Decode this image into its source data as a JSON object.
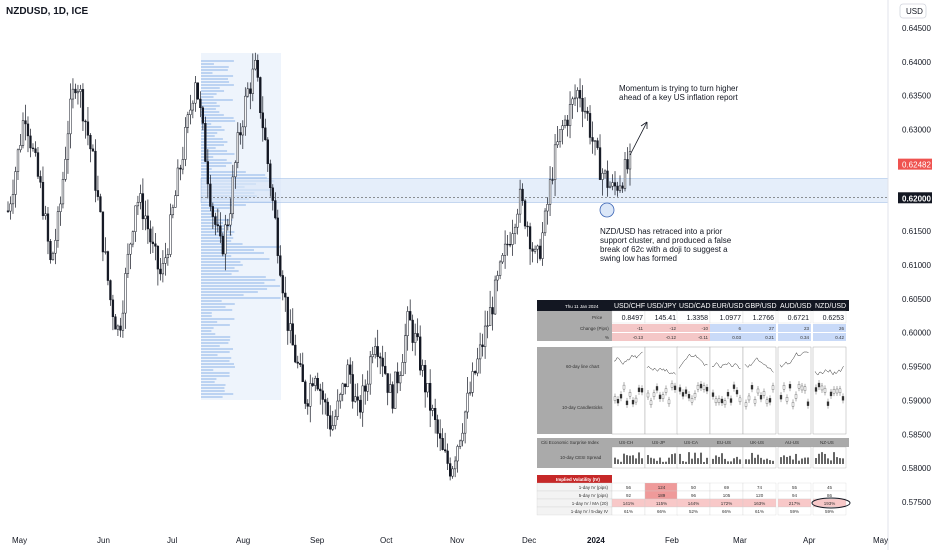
{
  "chart_data": {
    "type": "candlestick",
    "title": "NZDUSD, 1D, ICE",
    "currency": "USD",
    "y_ticks": [
      "0.64500",
      "0.64000",
      "0.63500",
      "0.63000",
      "0.62500",
      "0.62000",
      "0.61500",
      "0.61000",
      "0.60500",
      "0.60000",
      "0.59500",
      "0.59000",
      "0.58500",
      "0.58000",
      "0.57500"
    ],
    "y_tick_values": [
      0.645,
      0.64,
      0.635,
      0.63,
      0.625,
      0.62,
      0.615,
      0.61,
      0.605,
      0.6,
      0.595,
      0.59,
      0.585,
      0.58,
      0.575
    ],
    "ylim": [
      0.5725,
      0.6475
    ],
    "x_labels": [
      "May",
      "Jun",
      "Jul",
      "Aug",
      "Sep",
      "Oct",
      "Nov",
      "Dec",
      "2024",
      "Feb",
      "Mar",
      "Apr",
      "May"
    ],
    "current_price_label": "0.62482",
    "current_price": 0.62482,
    "line_price_label": "0.62000",
    "line_price": 0.62,
    "support_zone": [
      0.6192,
      0.6228
    ],
    "path": [
      0.618,
      0.625,
      0.633,
      0.626,
      0.62,
      0.61,
      0.617,
      0.63,
      0.638,
      0.632,
      0.625,
      0.615,
      0.605,
      0.6,
      0.61,
      0.62,
      0.618,
      0.612,
      0.608,
      0.615,
      0.623,
      0.63,
      0.638,
      0.628,
      0.618,
      0.612,
      0.618,
      0.628,
      0.635,
      0.639,
      0.63,
      0.62,
      0.61,
      0.6,
      0.595,
      0.59,
      0.595,
      0.59,
      0.586,
      0.59,
      0.595,
      0.588,
      0.592,
      0.6,
      0.596,
      0.59,
      0.595,
      0.602,
      0.598,
      0.592,
      0.587,
      0.582,
      0.58,
      0.585,
      0.59,
      0.595,
      0.6,
      0.605,
      0.61,
      0.615,
      0.62,
      0.616,
      0.61,
      0.616,
      0.625,
      0.63,
      0.633,
      0.636,
      0.632,
      0.626,
      0.623,
      0.621,
      0.623,
      0.6248
    ]
  },
  "annotations": {
    "momentum": [
      "Momentum is trying to turn higher",
      "ahead of a key US inflation report"
    ],
    "retrace": [
      "NZD/USD has retraced into a prior",
      "support cluster, and produced a false",
      "break of 62c with a doji to suggest a",
      "swing low has formed"
    ]
  },
  "table": {
    "date": "Thu 11 Jan 2024",
    "pairs": [
      "USD/CHF",
      "USD/JPY",
      "USD/CAD",
      "EUR/USD",
      "GBP/USD",
      "AUD/USD",
      "NZD/USD"
    ],
    "price_label": "Price",
    "prices": [
      "0.8497",
      "145.41",
      "1.3358",
      "1.0977",
      "1.2766",
      "0.6721",
      "0.6253"
    ],
    "change_pips_label": "Change (Pips)",
    "change_pips": [
      "-11",
      "-12",
      "-10",
      "6",
      "27",
      "23",
      "26"
    ],
    "change_pct_label": "%",
    "change_pct": [
      "-0.13",
      "-0.12",
      "-0.11",
      "0.03",
      "0.21",
      "0.34",
      "0.42"
    ],
    "line_chart_label": "60-day line chart",
    "candle_label": "10-day Candlesticks"
  },
  "citi": {
    "title": "Citi Economic Surprise Index",
    "regions": [
      "US-CH",
      "US-JP",
      "US-CA",
      "EU-US",
      "UK-US",
      "AU-US",
      "NZ-US"
    ],
    "spread_label": "10-day CESI Spread"
  },
  "iv": {
    "title": "Implied Volatility (IV)",
    "rows": [
      {
        "label": "1-day IV (pips)",
        "values": [
          "56",
          "124",
          "50",
          "69",
          "74",
          "55",
          "45"
        ]
      },
      {
        "label": "5-day IV (pips)",
        "values": [
          "92",
          "189",
          "96",
          "105",
          "120",
          "94",
          "86"
        ]
      },
      {
        "label": "1-day IV / MA (20)",
        "values": [
          "141%",
          "115%",
          "144%",
          "172%",
          "163%",
          "217%",
          "193%"
        ]
      },
      {
        "label": "1-day IV / 5-day IV",
        "values": [
          "61%",
          "66%",
          "52%",
          "66%",
          "61%",
          "59%",
          "59%"
        ]
      }
    ]
  },
  "colors": {
    "up": "#26a69a",
    "candle": "#131722",
    "zone": "#d6e4f7",
    "profile": "#c9daf8",
    "table_dark": "#131722",
    "iv_red": "#c62828"
  }
}
